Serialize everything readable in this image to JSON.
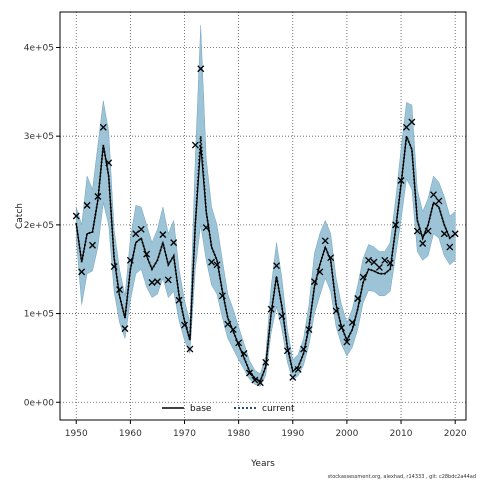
{
  "chart_data": {
    "type": "line",
    "xlabel": "Years",
    "ylabel": "Catch",
    "xlim": [
      1947,
      2022
    ],
    "ylim": [
      -20000,
      440000
    ],
    "x_ticks": [
      1950,
      1960,
      1970,
      1980,
      1990,
      2000,
      2010,
      2020
    ],
    "y_ticks": [
      0,
      100000,
      200000,
      300000,
      400000
    ],
    "y_tick_labels": [
      "0e+00",
      "1e+05",
      "2e+05",
      "3e+05",
      "4e+05"
    ],
    "grid": true,
    "legend_position": "bottom-center",
    "legend": [
      "base",
      "current"
    ],
    "footer": "stockassessment.org, alexhad, r14333 , git: c28bdc2a44ad",
    "colors": {
      "band": "#9cc3d6",
      "band_edge": "#6fa3bf",
      "line": "#000000",
      "marker": "#000000",
      "grid": "#555555"
    },
    "years": [
      1950,
      1951,
      1952,
      1953,
      1954,
      1955,
      1956,
      1957,
      1958,
      1959,
      1960,
      1961,
      1962,
      1963,
      1964,
      1965,
      1966,
      1967,
      1968,
      1969,
      1970,
      1971,
      1972,
      1973,
      1974,
      1975,
      1976,
      1977,
      1978,
      1979,
      1980,
      1981,
      1982,
      1983,
      1984,
      1985,
      1986,
      1987,
      1988,
      1989,
      1990,
      1991,
      1992,
      1993,
      1994,
      1995,
      1996,
      1997,
      1998,
      1999,
      2000,
      2001,
      2002,
      2003,
      2004,
      2005,
      2006,
      2007,
      2008,
      2009,
      2010,
      2011,
      2012,
      2013,
      2014,
      2015,
      2016,
      2017,
      2018,
      2019,
      2020
    ],
    "series": [
      {
        "name": "base",
        "style": "solid",
        "values": [
          202000,
          158000,
          190000,
          192000,
          228000,
          290000,
          255000,
          163000,
          120000,
          95000,
          150000,
          180000,
          185000,
          165000,
          150000,
          160000,
          180000,
          155000,
          165000,
          120000,
          92000,
          70000,
          200000,
          290000,
          215000,
          175000,
          160000,
          125000,
          95000,
          80000,
          65000,
          50000,
          35000,
          27000,
          24000,
          40000,
          100000,
          142000,
          108000,
          62000,
          35000,
          40000,
          55000,
          85000,
          130000,
          155000,
          175000,
          160000,
          110000,
          85000,
          70000,
          82000,
          105000,
          135000,
          150000,
          148000,
          145000,
          145000,
          150000,
          195000,
          245000,
          300000,
          285000,
          205000,
          185000,
          200000,
          225000,
          220000,
          200000,
          185000,
          190000
        ]
      },
      {
        "name": "current",
        "style": "dotted",
        "values": [
          202000,
          158000,
          190000,
          192000,
          228000,
          290000,
          255000,
          163000,
          120000,
          95000,
          150000,
          180000,
          185000,
          165000,
          150000,
          160000,
          180000,
          155000,
          165000,
          120000,
          92000,
          70000,
          200000,
          300000,
          215000,
          175000,
          160000,
          125000,
          95000,
          80000,
          65000,
          50000,
          35000,
          27000,
          24000,
          40000,
          100000,
          142000,
          108000,
          62000,
          35000,
          40000,
          55000,
          85000,
          130000,
          155000,
          175000,
          160000,
          110000,
          85000,
          70000,
          82000,
          105000,
          135000,
          150000,
          148000,
          145000,
          145000,
          150000,
          195000,
          245000,
          300000,
          285000,
          205000,
          185000,
          200000,
          225000,
          220000,
          200000,
          185000,
          190000
        ]
      }
    ],
    "confidence_band": {
      "lower": [
        185000,
        110000,
        145000,
        148000,
        175000,
        225000,
        200000,
        125000,
        90000,
        72000,
        115000,
        145000,
        150000,
        130000,
        118000,
        122000,
        140000,
        118000,
        125000,
        92000,
        70000,
        55000,
        150000,
        200000,
        160000,
        132000,
        122000,
        95000,
        72000,
        60000,
        48000,
        37000,
        26000,
        20000,
        18000,
        30000,
        78000,
        108000,
        82000,
        45000,
        25000,
        30000,
        42000,
        65000,
        100000,
        120000,
        140000,
        125000,
        85000,
        65000,
        52000,
        62000,
        82000,
        112000,
        126000,
        125000,
        120000,
        120000,
        125000,
        165000,
        205000,
        252000,
        240000,
        170000,
        160000,
        165000,
        190000,
        185000,
        165000,
        155000,
        160000
      ],
      "upper": [
        220000,
        200000,
        255000,
        240000,
        290000,
        340000,
        305000,
        195000,
        150000,
        120000,
        185000,
        222000,
        220000,
        200000,
        180000,
        195000,
        220000,
        190000,
        205000,
        150000,
        115000,
        90000,
        275000,
        425000,
        275000,
        220000,
        200000,
        160000,
        122000,
        105000,
        85000,
        66000,
        47000,
        36000,
        32000,
        52000,
        130000,
        180000,
        140000,
        82000,
        48000,
        54000,
        72000,
        110000,
        168000,
        190000,
        205000,
        190000,
        140000,
        110000,
        90000,
        105000,
        132000,
        162000,
        178000,
        175000,
        170000,
        170000,
        180000,
        228000,
        285000,
        338000,
        335000,
        240000,
        215000,
        230000,
        255000,
        248000,
        232000,
        210000,
        215000
      ]
    },
    "observed": [
      210000,
      147000,
      222000,
      177000,
      232000,
      310000,
      270000,
      153000,
      127000,
      83000,
      160000,
      190000,
      195000,
      167000,
      135000,
      136000,
      189000,
      138000,
      180000,
      115000,
      87000,
      60000,
      290000,
      376000,
      197000,
      158000,
      155000,
      120000,
      88000,
      82000,
      67000,
      55000,
      33000,
      25000,
      22000,
      45000,
      105000,
      154000,
      97000,
      58000,
      28000,
      37000,
      60000,
      82000,
      136000,
      147000,
      182000,
      163000,
      103000,
      84000,
      68000,
      90000,
      117000,
      141000,
      160000,
      158000,
      152000,
      160000,
      157000,
      200000,
      250000,
      310000,
      316000,
      193000,
      179000,
      193000,
      234000,
      227000,
      190000,
      175000,
      190000
    ]
  }
}
